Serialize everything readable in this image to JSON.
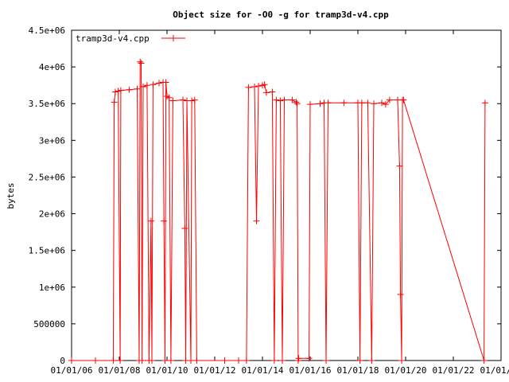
{
  "chart_data": {
    "type": "line",
    "title": "Object size for -O0 -g for tramp3d-v4.cpp",
    "xlabel": "",
    "ylabel": "bytes",
    "x_tick_labels": [
      "01/01/06",
      "01/01/08",
      "01/01/10",
      "01/01/12",
      "01/01/14",
      "01/01/16",
      "01/01/18",
      "01/01/20",
      "01/01/22",
      "01/01/24"
    ],
    "y_tick_labels": [
      "0",
      "500000",
      "1e+06",
      "1.5e+06",
      "2e+06",
      "2.5e+06",
      "3e+06",
      "3.5e+06",
      "4e+06",
      "4.5e+06"
    ],
    "xlim": [
      "2006-01-01",
      "2024-01-01"
    ],
    "ylim": [
      0,
      4500000
    ],
    "legend_position": "top-left",
    "grid": false,
    "series": [
      {
        "name": "tramp3d-v4.cpp",
        "color": "#ff0000",
        "points": [
          [
            "2006-01-01",
            0
          ],
          [
            "2007-01-01",
            0
          ],
          [
            "2007-10-01",
            0
          ],
          [
            "2007-10-15",
            3520000
          ],
          [
            "2007-11-01",
            3660000
          ],
          [
            "2007-12-15",
            3670000
          ],
          [
            "2008-01-15",
            0
          ],
          [
            "2008-01-25",
            3680000
          ],
          [
            "2008-06-01",
            3690000
          ],
          [
            "2008-10-01",
            3700000
          ],
          [
            "2008-11-01",
            0
          ],
          [
            "2008-11-15",
            4070000
          ],
          [
            "2008-12-01",
            4050000
          ],
          [
            "2008-12-15",
            0
          ],
          [
            "2009-01-01",
            3730000
          ],
          [
            "2009-03-01",
            3750000
          ],
          [
            "2009-04-01",
            0
          ],
          [
            "2009-05-01",
            1900000
          ],
          [
            "2009-05-15",
            0
          ],
          [
            "2009-06-01",
            3760000
          ],
          [
            "2009-09-01",
            3780000
          ],
          [
            "2009-11-01",
            3790000
          ],
          [
            "2009-11-15",
            1900000
          ],
          [
            "2009-12-01",
            0
          ],
          [
            "2009-12-15",
            3790000
          ],
          [
            "2010-01-01",
            3600000
          ],
          [
            "2010-02-01",
            3580000
          ],
          [
            "2010-03-01",
            0
          ],
          [
            "2010-04-01",
            3540000
          ],
          [
            "2010-09-01",
            3550000
          ],
          [
            "2010-10-01",
            1800000
          ],
          [
            "2010-10-15",
            0
          ],
          [
            "2010-11-01",
            3540000
          ],
          [
            "2011-01-01",
            0
          ],
          [
            "2011-01-15",
            3540000
          ],
          [
            "2011-03-01",
            3550000
          ],
          [
            "2011-04-01",
            0
          ],
          [
            "2012-06-01",
            0
          ],
          [
            "2013-01-01",
            0
          ],
          [
            "2013-05-01",
            0
          ],
          [
            "2013-06-01",
            3720000
          ],
          [
            "2013-09-01",
            3730000
          ],
          [
            "2013-10-01",
            1900000
          ],
          [
            "2013-11-01",
            3740000
          ],
          [
            "2014-01-01",
            3750000
          ],
          [
            "2014-02-01",
            3760000
          ],
          [
            "2014-03-01",
            3650000
          ],
          [
            "2014-06-01",
            3660000
          ],
          [
            "2014-07-01",
            0
          ],
          [
            "2014-08-01",
            3550000
          ],
          [
            "2014-10-01",
            3540000
          ],
          [
            "2014-11-01",
            0
          ],
          [
            "2014-12-01",
            3550000
          ],
          [
            "2015-04-01",
            3550000
          ],
          [
            "2015-06-01",
            3520000
          ],
          [
            "2015-06-15",
            3500000
          ],
          [
            "2015-07-01",
            0
          ],
          [
            "2015-07-10",
            30000
          ],
          [
            "2015-12-15",
            30000
          ],
          [
            "2016-01-01",
            3490000
          ],
          [
            "2016-06-01",
            3500000
          ],
          [
            "2016-08-01",
            3510000
          ],
          [
            "2016-09-01",
            0
          ],
          [
            "2016-10-01",
            3510000
          ],
          [
            "2017-06-01",
            3510000
          ],
          [
            "2018-01-01",
            3510000
          ],
          [
            "2018-02-01",
            0
          ],
          [
            "2018-03-01",
            3510000
          ],
          [
            "2018-06-01",
            3510000
          ],
          [
            "2018-08-01",
            0
          ],
          [
            "2018-09-01",
            3500000
          ],
          [
            "2019-01-01",
            3510000
          ],
          [
            "2019-03-01",
            3490000
          ],
          [
            "2019-05-01",
            3550000
          ],
          [
            "2019-09-01",
            3550000
          ],
          [
            "2019-10-01",
            2650000
          ],
          [
            "2019-10-15",
            900000
          ],
          [
            "2019-11-01",
            0
          ],
          [
            "2019-11-15",
            3550000
          ],
          [
            "2019-12-01",
            3550000
          ],
          [
            "2023-04-15",
            0
          ],
          [
            "2023-05-01",
            3510000
          ]
        ]
      }
    ]
  }
}
